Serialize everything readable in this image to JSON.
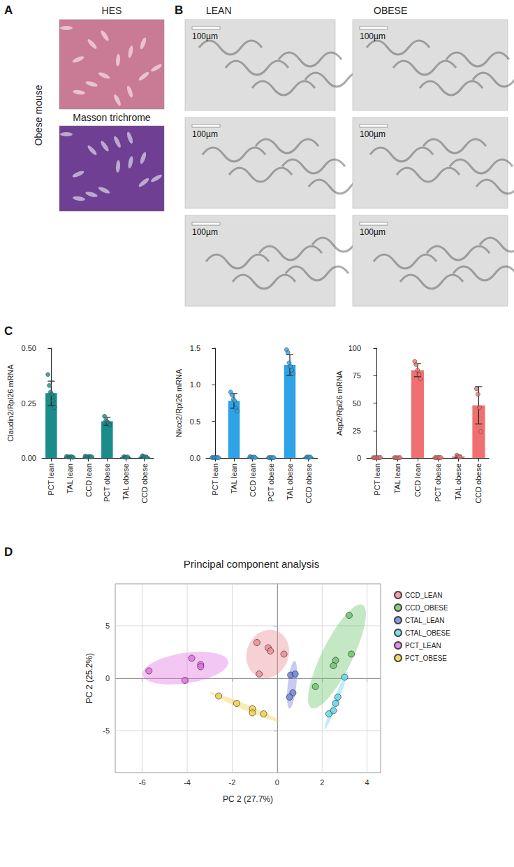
{
  "figure": {
    "panel_a": {
      "letter": "A",
      "side_label": "Obese mouse",
      "images": [
        {
          "title": "HES"
        },
        {
          "title": "Masson trichrome"
        }
      ]
    },
    "panel_b": {
      "letter": "B",
      "columns": [
        {
          "title": "LEAN",
          "scale_bars": [
            "100µm",
            "100µm",
            "100µm"
          ]
        },
        {
          "title": "OBESE",
          "scale_bars": [
            "100µm",
            "100µm",
            "100µm"
          ]
        }
      ]
    }
  },
  "chart_data": [
    {
      "panel": "C",
      "type": "bar",
      "y_label": "Claudin2/Rpl26 mRNA",
      "categories": [
        "PCT lean",
        "TAL lean",
        "CCD lean",
        "PCT obese",
        "TAL obese",
        "CCD obese"
      ],
      "values": [
        0.295,
        0.005,
        0.006,
        0.167,
        0.004,
        0.006
      ],
      "errors": [
        0.055,
        0.002,
        0.003,
        0.018,
        0.002,
        0.003
      ],
      "points": [
        [
          0.38,
          0.33,
          0.3,
          0.29,
          0.26,
          0.23
        ],
        [
          0.007,
          0.005,
          0.004,
          0.006,
          0.005,
          0.003
        ],
        [
          0.009,
          0.005,
          0.004,
          0.007,
          0.006,
          0.005
        ],
        [
          0.19,
          0.17,
          0.165,
          0.16,
          0.15
        ],
        [
          0.006,
          0.004,
          0.003,
          0.005
        ],
        [
          0.01,
          0.006,
          0.004,
          0.005
        ]
      ],
      "color": "#1b8c8c",
      "ylim": [
        0,
        0.5
      ],
      "yticks": [
        {
          "value": 0,
          "label": "0.00"
        },
        {
          "value": 0.25,
          "label": "0.25"
        },
        {
          "value": 0.5,
          "label": "0.50"
        }
      ]
    },
    {
      "type": "bar",
      "y_label": "Nkcc2/Rpl26 mRNA",
      "categories": [
        "PCT lean",
        "TAL lean",
        "CCD lean",
        "PCT obese",
        "TAL obese",
        "CCD obese"
      ],
      "values": [
        0.005,
        0.78,
        0.01,
        0.004,
        1.27,
        0.01
      ],
      "errors": [
        0.002,
        0.1,
        0.005,
        0.002,
        0.14,
        0.005
      ],
      "points": [
        [
          0.006,
          0.004,
          0.005,
          0.007,
          0.005,
          0.003
        ],
        [
          0.9,
          0.86,
          0.8,
          0.78,
          0.68,
          0.64
        ],
        [
          0.02,
          0.01,
          0.008,
          0.012,
          0.006
        ],
        [
          0.005,
          0.004,
          0.006,
          0.003,
          0.004
        ],
        [
          1.48,
          1.44,
          1.3,
          1.25,
          1.2,
          1.15
        ],
        [
          0.01,
          0.015,
          0.008,
          0.012
        ]
      ],
      "color": "#2ea3e6",
      "ylim": [
        0,
        1.5
      ],
      "yticks": [
        {
          "value": 0,
          "label": "0.0"
        },
        {
          "value": 0.5,
          "label": "0.5"
        },
        {
          "value": 1,
          "label": "1.0"
        },
        {
          "value": 1.5,
          "label": "1.5"
        }
      ]
    },
    {
      "type": "bar",
      "y_label": "Aqp2/Rpl26 mRNA",
      "categories": [
        "PCT lean",
        "TAL lean",
        "CCD lean",
        "PCT obese",
        "TAL obese",
        "CCD obese"
      ],
      "values": [
        0.3,
        0.2,
        80,
        0.3,
        1.5,
        48
      ],
      "errors": [
        0.1,
        0.1,
        6,
        0.1,
        1,
        17
      ],
      "points": [
        [
          0.3,
          0.2,
          0.4,
          0.3,
          0.2,
          0.4
        ],
        [
          0.2,
          0.3,
          0.1,
          0.2,
          0.3
        ],
        [
          88,
          85,
          80,
          76,
          72
        ],
        [
          0.3,
          0.2,
          0.4,
          0.3,
          0.3
        ],
        [
          2.5,
          1.5,
          0.8
        ],
        [
          63,
          58,
          46,
          24
        ]
      ],
      "color": "#f07070",
      "ylim": [
        0,
        100
      ],
      "yticks": [
        0,
        25,
        50,
        75,
        100
      ]
    },
    {
      "panel": "D",
      "type": "scatter",
      "title": "Principal component analysis",
      "x_label": "PC 2 (27.7%)",
      "y_label": "PC 2 (25.2%)",
      "xlim": [
        -7.2,
        4.6
      ],
      "xticks": [
        -6,
        -4,
        -2,
        0,
        2,
        4
      ],
      "ylim": [
        -9,
        9
      ],
      "yticks": [
        -5,
        0,
        5
      ],
      "grid": true,
      "legend": "right",
      "marker": "circle",
      "series": [
        {
          "name": "CCD_LEAN",
          "color": "#ec8a92",
          "x": [
            -0.9,
            -0.4,
            -0.3,
            0.3,
            -0.8
          ],
          "y": [
            3.4,
            2.9,
            2.6,
            2.3,
            0.4
          ]
        },
        {
          "name": "CCD_OBESE",
          "color": "#6cc36c",
          "x": [
            3.2,
            3.3,
            2.6,
            2.5,
            1.7
          ],
          "y": [
            6.0,
            2.3,
            1.7,
            1.2,
            -0.8
          ]
        },
        {
          "name": "CTAL_LEAN",
          "color": "#6f7fd8",
          "x": [
            0.6,
            0.8,
            0.7,
            0.55
          ],
          "y": [
            0.3,
            0.4,
            -1.4,
            -1.8
          ]
        },
        {
          "name": "CTAL_OBESE",
          "color": "#62d4e6",
          "x": [
            3.0,
            2.7,
            2.6,
            2.5,
            2.3
          ],
          "y": [
            0.1,
            -1.8,
            -2.4,
            -3.1,
            -3.4
          ]
        },
        {
          "name": "PCT_LEAN",
          "color": "#e070e0",
          "x": [
            -5.7,
            -3.8,
            -3.4,
            -3.4,
            -4.1
          ],
          "y": [
            0.7,
            1.9,
            1.3,
            1.1,
            -0.2
          ]
        },
        {
          "name": "PCT_OBESE",
          "color": "#f0d048",
          "x": [
            -2.6,
            -1.8,
            -1.1,
            -1.1,
            -0.6
          ],
          "y": [
            -1.7,
            -2.4,
            -2.9,
            -3.3,
            -3.4
          ]
        }
      ]
    }
  ]
}
